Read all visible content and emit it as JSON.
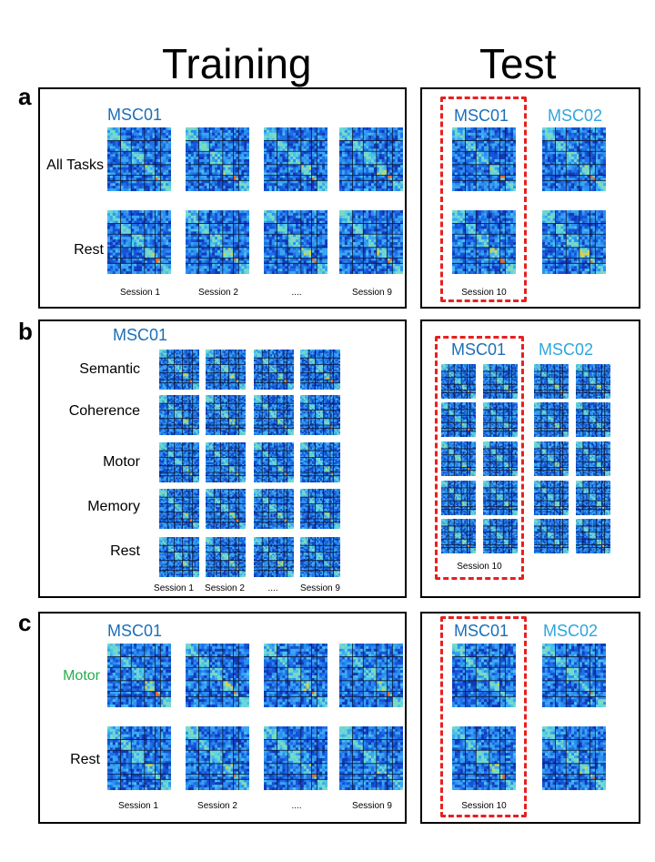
{
  "headers": {
    "training": "Training",
    "test": "Test"
  },
  "colors": {
    "subject1": "#1b6fb8",
    "subject2": "#2ea6dd",
    "motor": "#22b04b",
    "dash": "#e8201f"
  },
  "panels": {
    "a": {
      "label": "a",
      "training": {
        "subject": "MSC01",
        "rows": [
          "All Tasks",
          "Rest"
        ],
        "sessions": [
          "Session 1",
          "Session 2",
          "....",
          "Session 9"
        ]
      },
      "test": {
        "subject1": "MSC01",
        "subject2": "MSC02",
        "session": "Session 10"
      }
    },
    "b": {
      "label": "b",
      "training": {
        "subject": "MSC01",
        "rows": [
          "Semantic",
          "Coherence",
          "Motor",
          "Memory",
          "Rest"
        ],
        "sessions": [
          "Session 1",
          "Session 2",
          "....",
          "Session 9"
        ]
      },
      "test": {
        "subject1": "MSC01",
        "subject2": "MSC02",
        "session": "Session 10"
      }
    },
    "c": {
      "label": "c",
      "training": {
        "subject": "MSC01",
        "rows": [
          "Motor",
          "Rest"
        ],
        "sessions": [
          "Session 1",
          "Session 2",
          "....",
          "Session 9"
        ]
      },
      "test": {
        "subject1": "MSC01",
        "subject2": "MSC02",
        "session": "Session 10"
      }
    }
  }
}
